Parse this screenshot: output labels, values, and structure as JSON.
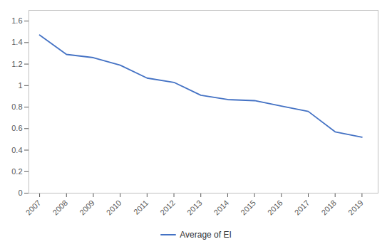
{
  "chart_data": {
    "type": "line",
    "x": [
      2007,
      2008,
      2009,
      2010,
      2011,
      2012,
      2013,
      2014,
      2015,
      2016,
      2017,
      2018,
      2019
    ],
    "series": [
      {
        "name": "Average of EI",
        "color": "#4472C4",
        "values": [
          1.47,
          1.29,
          1.26,
          1.19,
          1.07,
          1.03,
          0.91,
          0.87,
          0.86,
          0.81,
          0.76,
          0.57,
          0.52
        ]
      }
    ],
    "xlim": [
      2006.6,
      2019.6
    ],
    "xticks": [
      2007,
      2008,
      2009,
      2010,
      2011,
      2012,
      2013,
      2014,
      2015,
      2016,
      2017,
      2018,
      2019
    ],
    "ylim": [
      0,
      1.7
    ],
    "yticks": [
      0,
      0.2,
      0.4,
      0.6,
      0.8,
      1,
      1.2,
      1.4,
      1.6
    ],
    "grid": false,
    "legend": "bottom"
  }
}
